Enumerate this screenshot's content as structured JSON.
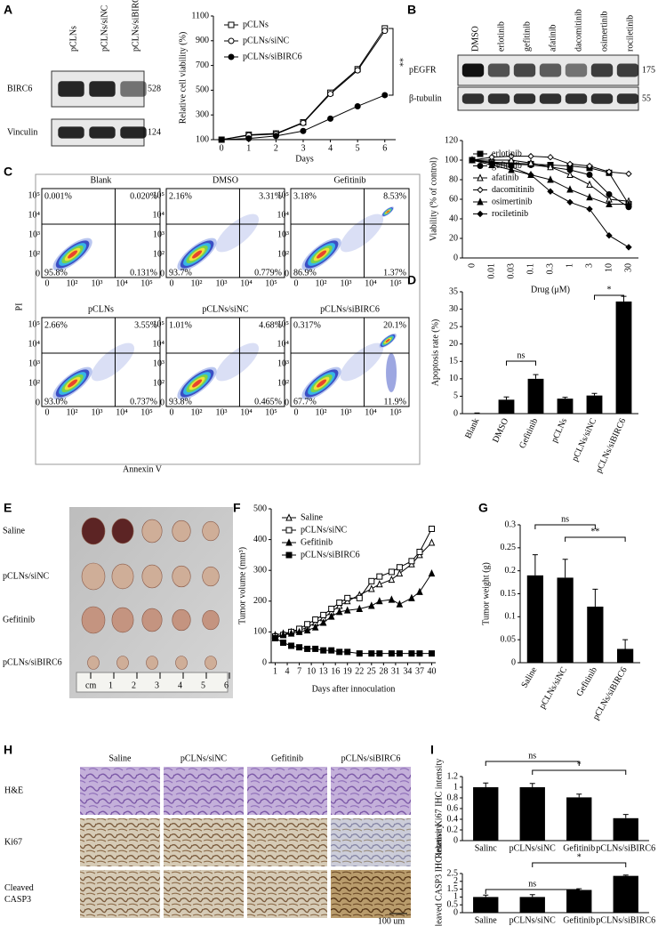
{
  "panel_labels": [
    "A",
    "B",
    "C",
    "D",
    "E",
    "F",
    "G",
    "H",
    "I"
  ],
  "blots": [
    {
      "lanes": [
        "pCLNs",
        "pCLNs/siNC",
        "pCLNs/siBIRC6"
      ],
      "rows": [
        {
          "label": "BIRC6",
          "kda": 528
        },
        {
          "label": "Vinculin",
          "kda": 124
        }
      ]
    },
    {
      "lanes": [
        "DMSO",
        "erlotinib",
        "gefitinib",
        "afatinib",
        "dacomitinib",
        "osimertinib",
        "rociletinib"
      ],
      "rows": [
        {
          "label": "pEGFR",
          "kda": 175
        },
        {
          "label": "β-tubulin",
          "kda": 55
        }
      ]
    }
  ],
  "flow": {
    "y_label": "PI",
    "x_label": "Annexin V",
    "axis_ticks": [
      "0",
      "10²",
      "10³",
      "10⁴",
      "10⁵"
    ],
    "panels": [
      {
        "title": "Blank",
        "quadrants": [
          "0.001%",
          "0.020%",
          "95.8%",
          "0.131%"
        ]
      },
      {
        "title": "DMSO",
        "quadrants": [
          "2.16%",
          "3.31%",
          "93.7%",
          "0.779%"
        ]
      },
      {
        "title": "Gefitinib",
        "quadrants": [
          "3.18%",
          "8.53%",
          "86.9%",
          "1.37%"
        ]
      },
      {
        "title": "pCLNs",
        "quadrants": [
          "2.66%",
          "3.55%",
          "93.0%",
          "0.737%"
        ]
      },
      {
        "title": "pCLNs/siNC",
        "quadrants": [
          "1.01%",
          "4.68%",
          "93.8%",
          "0.465%"
        ]
      },
      {
        "title": "pCLNs/siBIRC6",
        "quadrants": [
          "0.317%",
          "20.1%",
          "67.7%",
          "11.9%"
        ]
      }
    ]
  },
  "tumor_image": {
    "row_labels": [
      "Saline",
      "pCLNs/siNC",
      "Gefitinib",
      "pCLNs/siBIRC6"
    ],
    "ruler_labels": [
      "cm",
      "1",
      "2",
      "3",
      "4",
      "5",
      "6"
    ]
  },
  "ihc": {
    "columns": [
      "Saline",
      "pCLNs/siNC",
      "Gefitinib",
      "pCLNs/siBIRC6"
    ],
    "rows": [
      [
        "H&E"
      ],
      [
        "Ki67"
      ],
      [
        "Cleaved",
        "CASP3"
      ]
    ],
    "scale_bar": "100 um"
  },
  "chart_data": [
    {
      "type": "line",
      "x": [
        0,
        1,
        2,
        3,
        4,
        5,
        6
      ],
      "xlim": [
        -0.3,
        6.4
      ],
      "xticks": [
        0,
        1,
        2,
        3,
        4,
        5,
        6
      ],
      "ylim": [
        100,
        1100
      ],
      "yticks": [
        100,
        300,
        500,
        700,
        900,
        1100
      ],
      "x_label": "Days",
      "y_label": "Relative cell viability (%)",
      "legend": "upper left",
      "annotations": [
        "**"
      ],
      "series": [
        {
          "name": "pCLNs",
          "color": "#000000",
          "marker": "square-open",
          "values": [
            100,
            140,
            150,
            240,
            480,
            670,
            1000
          ]
        },
        {
          "name": "pCLNs/siNC",
          "color": "#000000",
          "marker": "circle-open",
          "values": [
            100,
            135,
            145,
            235,
            470,
            660,
            980
          ]
        },
        {
          "name": "pCLNs/siBIRC6",
          "color": "#000000",
          "marker": "circle",
          "values": [
            100,
            110,
            130,
            170,
            270,
            370,
            460
          ]
        }
      ]
    },
    {
      "type": "line",
      "categories": [
        "0",
        "0.01",
        "0.03",
        "0.1",
        "0.3",
        "1",
        "3",
        "10",
        "30"
      ],
      "ylim": [
        0,
        120
      ],
      "yticks": [
        0,
        20,
        40,
        60,
        80,
        100,
        120
      ],
      "x_label": "Drug (μM)",
      "y_label": "Viability (% of control)",
      "legend": "lower left",
      "series": [
        {
          "name": "erlotinib",
          "color": "#000000",
          "marker": "square",
          "values": [
            100,
            98,
            97,
            96,
            95,
            94,
            92,
            87,
            55
          ]
        },
        {
          "name": "gefitinib",
          "color": "#000000",
          "marker": "circle",
          "values": [
            100,
            97,
            96,
            95,
            93,
            90,
            85,
            65,
            52
          ]
        },
        {
          "name": "afatinib",
          "color": "#000000",
          "marker": "triangle-open",
          "values": [
            100,
            100,
            100,
            97,
            93,
            85,
            75,
            60,
            58
          ]
        },
        {
          "name": "dacomitinib",
          "color": "#000000",
          "marker": "diamond-open",
          "values": [
            100,
            103,
            104,
            104,
            103,
            96,
            94,
            88,
            86
          ]
        },
        {
          "name": "osimertinib",
          "color": "#000000",
          "marker": "triangle",
          "values": [
            100,
            95,
            90,
            85,
            80,
            70,
            62,
            55,
            55
          ]
        },
        {
          "name": "rociletinib",
          "color": "#000000",
          "marker": "diamond",
          "values": [
            100,
            97,
            93,
            85,
            68,
            57,
            50,
            23,
            11
          ]
        }
      ]
    },
    {
      "type": "bar",
      "categories": [
        "Blank",
        "DMSO",
        "Gefitinib",
        "pCLNs",
        "pCLNs/siNC",
        "pCLNs/siBIRC6"
      ],
      "values": [
        0.1,
        4,
        10,
        4.3,
        5.2,
        32.2
      ],
      "errors": [
        0.1,
        0.8,
        1.2,
        0.4,
        0.6,
        1.5
      ],
      "color": "#000000",
      "ylim": [
        0,
        35
      ],
      "yticks": [
        0,
        5,
        10,
        15,
        20,
        25,
        30,
        35
      ],
      "y_label": "Apoptosis rate (%)",
      "annotations": [
        "ns",
        "*"
      ]
    },
    {
      "type": "line",
      "x": [
        1,
        3,
        5,
        7,
        9,
        11,
        13,
        15,
        17,
        19,
        22,
        25,
        27,
        30,
        32,
        35,
        37,
        40
      ],
      "xlim": [
        0,
        41
      ],
      "xticks": [
        1,
        4,
        7,
        10,
        13,
        16,
        19,
        22,
        25,
        28,
        31,
        34,
        37,
        40
      ],
      "ylim": [
        0,
        500
      ],
      "yticks": [
        0,
        100,
        200,
        300,
        400,
        500
      ],
      "x_label": "Days after innoculation",
      "y_label": "Tumor volume (mm³)",
      "legend": "upper left",
      "series": [
        {
          "name": "Saline",
          "color": "#000000",
          "marker": "triangle-open",
          "values": [
            90,
            95,
            100,
            105,
            115,
            130,
            145,
            165,
            185,
            200,
            220,
            240,
            255,
            270,
            290,
            320,
            350,
            390
          ]
        },
        {
          "name": "pCLNs/siNC",
          "color": "#000000",
          "marker": "square-open",
          "values": [
            85,
            90,
            100,
            110,
            125,
            140,
            155,
            175,
            195,
            210,
            210,
            265,
            280,
            295,
            310,
            330,
            360,
            435
          ]
        },
        {
          "name": "Gefitinib",
          "color": "#000000",
          "marker": "triangle",
          "values": [
            80,
            90,
            95,
            100,
            105,
            115,
            130,
            150,
            165,
            170,
            175,
            185,
            200,
            205,
            190,
            210,
            230,
            290
          ]
        },
        {
          "name": "pCLNs/siBIRC6",
          "color": "#000000",
          "marker": "square",
          "values": [
            80,
            65,
            55,
            50,
            45,
            45,
            40,
            40,
            35,
            35,
            30,
            30,
            30,
            30,
            30,
            30,
            30,
            30
          ]
        }
      ]
    },
    {
      "type": "bar",
      "categories": [
        "Saline",
        "pCLNs/siNC",
        "Gefitinib",
        "pCLNs/siBIRC6"
      ],
      "values": [
        0.19,
        0.185,
        0.122,
        0.03
      ],
      "errors": [
        0.045,
        0.04,
        0.038,
        0.02
      ],
      "color": "#000000",
      "ylim": [
        0,
        0.3
      ],
      "yticks": [
        0,
        0.05,
        0.1,
        0.15,
        0.2,
        0.25,
        0.3
      ],
      "y_label": "Tumor weight (g)",
      "annotations": [
        "ns",
        "**"
      ]
    },
    {
      "type": "bar",
      "categories": [
        "Salinc",
        "pCLNs/siNC",
        "Gefitinib",
        "pCLNs/siBIRC6"
      ],
      "values": [
        1,
        1,
        0.81,
        0.42
      ],
      "errors": [
        0.08,
        0.07,
        0.06,
        0.07
      ],
      "color": "#000000",
      "ylim": [
        0,
        1.2
      ],
      "yticks": [
        0,
        0.2,
        0.4,
        0.6,
        0.8,
        1,
        1.2
      ],
      "y_label": "Relative Ki67 IHC intensity",
      "annotations": [
        "ns",
        "*"
      ]
    },
    {
      "type": "bar",
      "categories": [
        "Saline",
        "pCLNs/siNC",
        "Gefitinib",
        "pCLNs/siBIRC6"
      ],
      "values": [
        1,
        1,
        1.45,
        2.35
      ],
      "errors": [
        0.12,
        0.15,
        0.08,
        0.05
      ],
      "color": "#000000",
      "ylim": [
        0,
        2.5
      ],
      "yticks": [
        0,
        0.5,
        1,
        1.5,
        2,
        2.5
      ],
      "y_label": "Relative cleaved CASP3 IHC intensity",
      "annotations": [
        "ns",
        "*"
      ]
    }
  ]
}
